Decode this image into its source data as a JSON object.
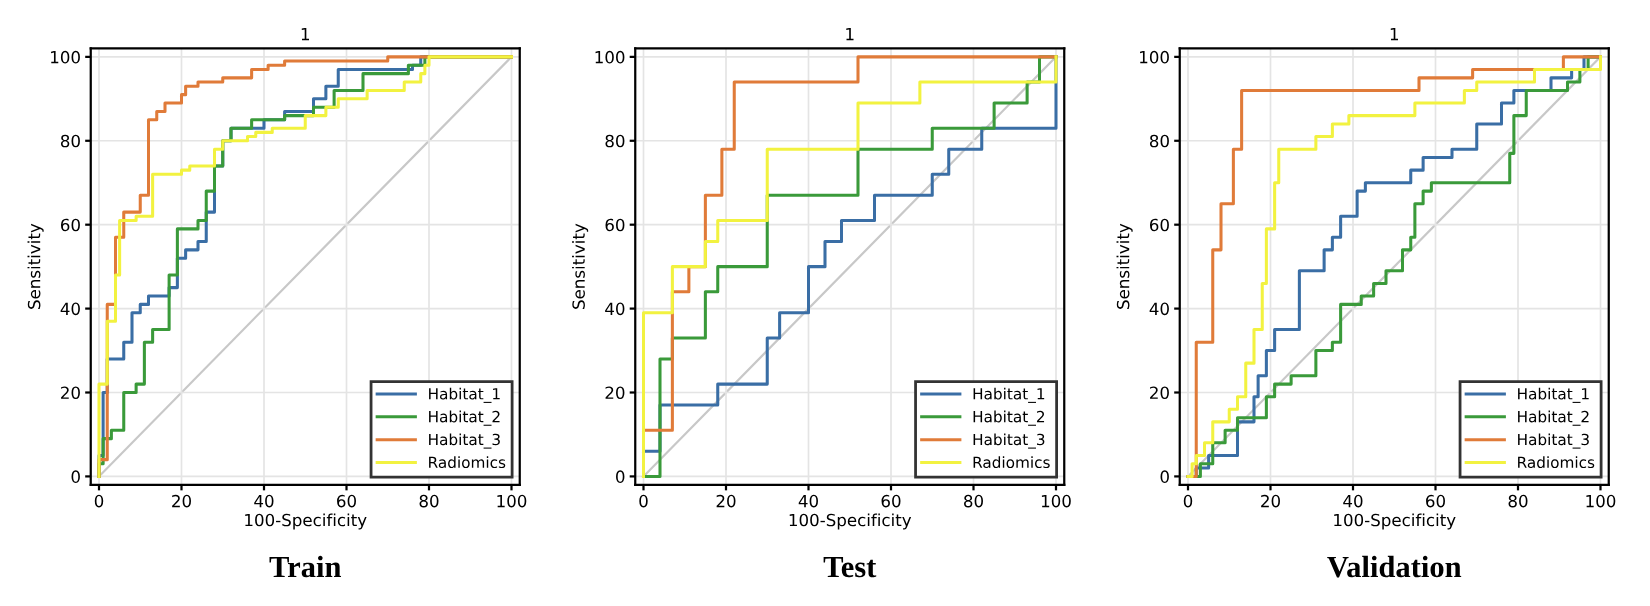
{
  "chart_data": [
    {
      "type": "step",
      "title": "1",
      "xlabel": "100-Specificity",
      "ylabel": "Sensitivity",
      "annotations": [
        "Train"
      ],
      "xlim": [
        -2,
        102
      ],
      "ylim": [
        -2,
        102
      ],
      "xticks": [
        0,
        20,
        40,
        60,
        80,
        100
      ],
      "yticks": [
        0,
        20,
        40,
        60,
        80,
        100
      ],
      "grid": true,
      "legend": "bottom right",
      "series": [
        {
          "name": "Habitat_1",
          "color": "#3a6ea5",
          "x": [
            0,
            0,
            1,
            2,
            6,
            8,
            10,
            12,
            17,
            19,
            21,
            24,
            26,
            28,
            30,
            32,
            36,
            40,
            45,
            52,
            55,
            58,
            76,
            78,
            100
          ],
          "values": [
            0,
            5,
            20,
            28,
            32,
            39,
            41,
            43,
            45,
            52,
            54,
            56,
            63,
            74,
            80,
            83,
            83,
            85,
            87,
            90,
            93,
            97,
            98,
            100,
            100
          ]
        },
        {
          "name": "Habitat_2",
          "color": "#3a9a3a",
          "x": [
            0,
            0,
            1,
            3,
            6,
            9,
            11,
            13,
            17,
            19,
            24,
            26,
            28,
            30,
            32,
            37,
            45,
            52,
            57,
            64,
            75,
            79,
            100
          ],
          "values": [
            0,
            3,
            9,
            11,
            20,
            22,
            32,
            35,
            48,
            59,
            61,
            68,
            74,
            80,
            83,
            85,
            86,
            88,
            92,
            96,
            98,
            100,
            100
          ]
        },
        {
          "name": "Habitat_3",
          "color": "#e07b39",
          "x": [
            0,
            0,
            2,
            2,
            4,
            6,
            10,
            12,
            14,
            16,
            20,
            21,
            24,
            30,
            37,
            41,
            45,
            70,
            100
          ],
          "values": [
            0,
            4,
            20,
            41,
            57,
            63,
            67,
            85,
            87,
            89,
            91,
            93,
            94,
            95,
            97,
            98,
            99,
            100,
            100
          ]
        },
        {
          "name": "Radiomics",
          "color": "#f2f240",
          "x": [
            0,
            0,
            2,
            4,
            5,
            9,
            13,
            20,
            22,
            28,
            30,
            36,
            38,
            42,
            50,
            55,
            58,
            65,
            74,
            78,
            79,
            80,
            100
          ],
          "values": [
            0,
            22,
            37,
            48,
            61,
            62,
            72,
            73,
            74,
            78,
            80,
            81,
            82,
            83,
            86,
            88,
            90,
            92,
            94,
            96,
            98,
            100,
            100
          ]
        },
        {
          "type": "line",
          "color": "#c8c8c8",
          "x": [
            0,
            100
          ],
          "values": [
            0,
            100
          ]
        }
      ]
    },
    {
      "type": "step",
      "title": "1",
      "xlabel": "100-Specificity",
      "ylabel": "Sensitivity",
      "annotations": [
        "Test"
      ],
      "xlim": [
        -2,
        102
      ],
      "ylim": [
        -2,
        102
      ],
      "xticks": [
        0,
        20,
        40,
        60,
        80,
        100
      ],
      "yticks": [
        0,
        20,
        40,
        60,
        80,
        100
      ],
      "grid": true,
      "legend": "bottom right",
      "series": [
        {
          "name": "Habitat_1",
          "color": "#3a6ea5",
          "x": [
            0,
            0,
            4,
            18,
            30,
            33,
            40,
            44,
            48,
            56,
            70,
            74,
            82,
            100
          ],
          "values": [
            0,
            6,
            17,
            22,
            33,
            39,
            50,
            56,
            61,
            67,
            72,
            78,
            83,
            100
          ]
        },
        {
          "name": "Habitat_2",
          "color": "#3a9a3a",
          "x": [
            0,
            4,
            7,
            15,
            18,
            30,
            52,
            70,
            85,
            93,
            96,
            100
          ],
          "values": [
            0,
            28,
            33,
            44,
            50,
            67,
            78,
            83,
            89,
            94,
            100,
            100
          ]
        },
        {
          "name": "Habitat_3",
          "color": "#e07b39",
          "x": [
            0,
            0,
            7,
            7,
            11,
            15,
            19,
            22,
            52,
            100
          ],
          "values": [
            0,
            11,
            33,
            44,
            50,
            67,
            78,
            94,
            100,
            100
          ]
        },
        {
          "name": "Radiomics",
          "color": "#f2f240",
          "x": [
            0,
            0,
            7,
            15,
            18,
            30,
            52,
            67,
            100
          ],
          "values": [
            0,
            39,
            50,
            56,
            61,
            78,
            89,
            94,
            100
          ]
        },
        {
          "type": "line",
          "color": "#c8c8c8",
          "x": [
            0,
            100
          ],
          "values": [
            0,
            100
          ]
        }
      ]
    },
    {
      "type": "step",
      "title": "1",
      "xlabel": "100-Specificity",
      "ylabel": "Sensitivity",
      "annotations": [
        "Validation"
      ],
      "xlim": [
        -2,
        102
      ],
      "ylim": [
        -2,
        102
      ],
      "xticks": [
        0,
        20,
        40,
        60,
        80,
        100
      ],
      "yticks": [
        0,
        20,
        40,
        60,
        80,
        100
      ],
      "grid": true,
      "legend": "bottom right",
      "series": [
        {
          "name": "Habitat_1",
          "color": "#3a6ea5",
          "x": [
            0,
            2,
            5,
            12,
            16,
            17,
            19,
            21,
            27,
            33,
            35,
            37,
            41,
            43,
            54,
            57,
            64,
            70,
            76,
            79,
            88,
            93,
            96,
            100
          ],
          "values": [
            0,
            2,
            5,
            13,
            19,
            24,
            30,
            35,
            49,
            54,
            57,
            62,
            68,
            70,
            73,
            76,
            78,
            84,
            89,
            92,
            95,
            97,
            100,
            100
          ]
        },
        {
          "name": "Habitat_2",
          "color": "#3a9a3a",
          "x": [
            0,
            3,
            6,
            9,
            12,
            19,
            21,
            25,
            31,
            35,
            37,
            42,
            45,
            48,
            52,
            54,
            55,
            57,
            59,
            78,
            79,
            82,
            92,
            95,
            97,
            100
          ],
          "values": [
            0,
            3,
            8,
            11,
            14,
            19,
            22,
            24,
            30,
            32,
            41,
            43,
            46,
            49,
            54,
            57,
            65,
            68,
            70,
            77,
            86,
            92,
            94,
            97,
            100,
            100
          ]
        },
        {
          "name": "Habitat_3",
          "color": "#e07b39",
          "x": [
            0,
            2,
            6,
            8,
            11,
            13,
            56,
            69,
            91,
            100
          ],
          "values": [
            0,
            32,
            54,
            65,
            78,
            92,
            95,
            97,
            100,
            100
          ]
        },
        {
          "name": "Radiomics",
          "color": "#f2f240",
          "x": [
            0,
            1,
            2,
            4,
            6,
            10,
            12,
            14,
            16,
            18,
            19,
            21,
            22,
            31,
            35,
            39,
            55,
            67,
            70,
            84,
            100
          ],
          "values": [
            0,
            3,
            5,
            8,
            13,
            16,
            19,
            27,
            35,
            46,
            59,
            70,
            78,
            81,
            84,
            86,
            89,
            92,
            94,
            97,
            100
          ]
        },
        {
          "type": "line",
          "color": "#c8c8c8",
          "x": [
            0,
            100
          ],
          "values": [
            0,
            100
          ]
        }
      ]
    }
  ]
}
